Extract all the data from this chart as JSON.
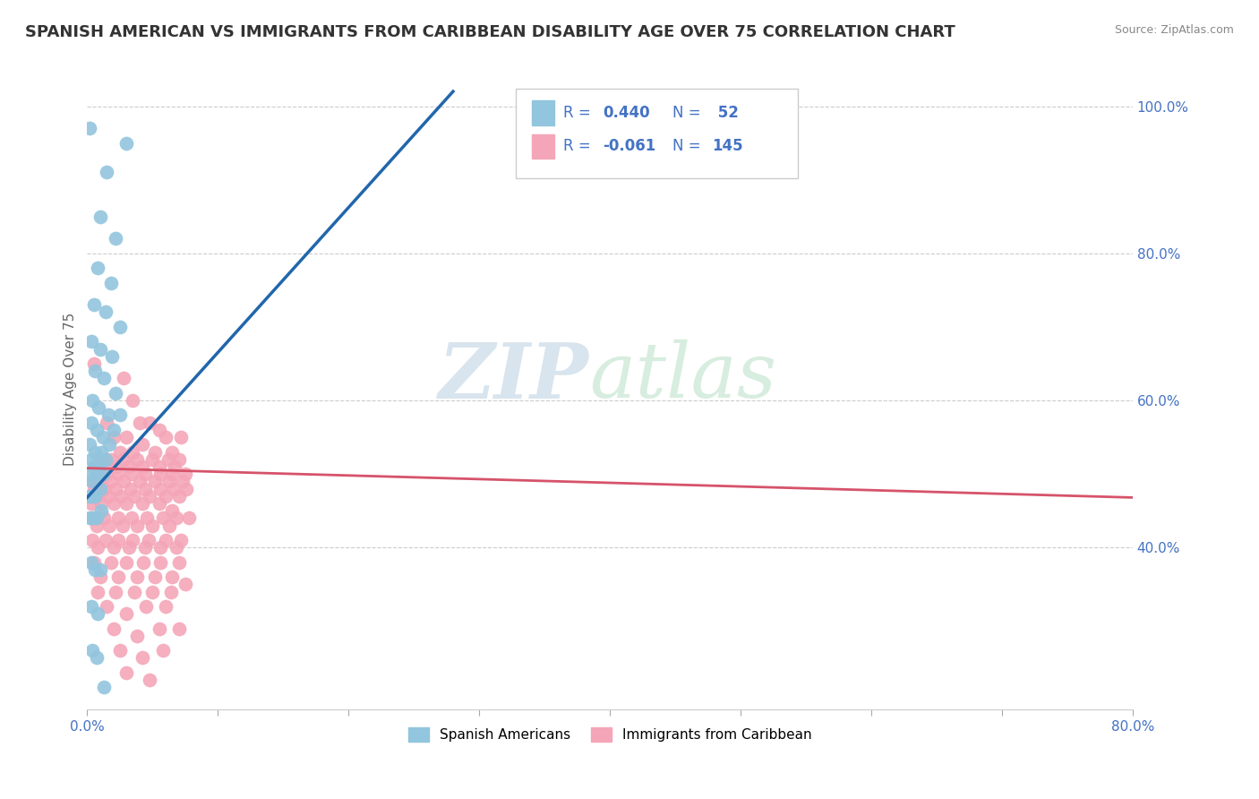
{
  "title": "SPANISH AMERICAN VS IMMIGRANTS FROM CARIBBEAN DISABILITY AGE OVER 75 CORRELATION CHART",
  "source": "Source: ZipAtlas.com",
  "ylabel": "Disability Age Over 75",
  "xlim": [
    0.0,
    0.8
  ],
  "ylim": [
    0.18,
    1.05
  ],
  "xtick_labels": [
    "0.0%",
    "",
    "",
    "",
    "",
    "",
    "",
    "",
    "80.0%"
  ],
  "ytick_labels_right": [
    "100.0%",
    "80.0%",
    "60.0%",
    "40.0%"
  ],
  "ytick_positions_right": [
    1.0,
    0.8,
    0.6,
    0.4
  ],
  "legend_label1": "Spanish Americans",
  "legend_label2": "Immigrants from Caribbean",
  "blue_color": "#92c5de",
  "pink_color": "#f4a6b8",
  "blue_line_color": "#2166ac",
  "pink_line_color": "#d6536a",
  "background_color": "#ffffff",
  "watermark_zip": "ZIP",
  "watermark_atlas": "atlas",
  "title_fontsize": 13,
  "axis_label_fontsize": 11,
  "tick_fontsize": 11,
  "blue_scatter": [
    [
      0.002,
      0.97
    ],
    [
      0.015,
      0.91
    ],
    [
      0.03,
      0.95
    ],
    [
      0.01,
      0.85
    ],
    [
      0.022,
      0.82
    ],
    [
      0.008,
      0.78
    ],
    [
      0.018,
      0.76
    ],
    [
      0.005,
      0.73
    ],
    [
      0.014,
      0.72
    ],
    [
      0.025,
      0.7
    ],
    [
      0.003,
      0.68
    ],
    [
      0.01,
      0.67
    ],
    [
      0.019,
      0.66
    ],
    [
      0.006,
      0.64
    ],
    [
      0.013,
      0.63
    ],
    [
      0.022,
      0.61
    ],
    [
      0.004,
      0.6
    ],
    [
      0.009,
      0.59
    ],
    [
      0.016,
      0.58
    ],
    [
      0.025,
      0.58
    ],
    [
      0.003,
      0.57
    ],
    [
      0.007,
      0.56
    ],
    [
      0.012,
      0.55
    ],
    [
      0.02,
      0.56
    ],
    [
      0.002,
      0.54
    ],
    [
      0.006,
      0.53
    ],
    [
      0.011,
      0.53
    ],
    [
      0.017,
      0.54
    ],
    [
      0.003,
      0.52
    ],
    [
      0.005,
      0.51
    ],
    [
      0.009,
      0.51
    ],
    [
      0.014,
      0.52
    ],
    [
      0.002,
      0.5
    ],
    [
      0.004,
      0.49
    ],
    [
      0.007,
      0.5
    ],
    [
      0.012,
      0.5
    ],
    [
      0.002,
      0.47
    ],
    [
      0.004,
      0.47
    ],
    [
      0.006,
      0.47
    ],
    [
      0.01,
      0.48
    ],
    [
      0.002,
      0.44
    ],
    [
      0.004,
      0.44
    ],
    [
      0.007,
      0.44
    ],
    [
      0.011,
      0.45
    ],
    [
      0.003,
      0.38
    ],
    [
      0.006,
      0.37
    ],
    [
      0.01,
      0.37
    ],
    [
      0.003,
      0.32
    ],
    [
      0.008,
      0.31
    ],
    [
      0.004,
      0.26
    ],
    [
      0.007,
      0.25
    ],
    [
      0.013,
      0.21
    ]
  ],
  "pink_scatter": [
    [
      0.005,
      0.65
    ],
    [
      0.028,
      0.63
    ],
    [
      0.035,
      0.6
    ],
    [
      0.015,
      0.57
    ],
    [
      0.04,
      0.57
    ],
    [
      0.048,
      0.57
    ],
    [
      0.055,
      0.56
    ],
    [
      0.02,
      0.55
    ],
    [
      0.03,
      0.55
    ],
    [
      0.042,
      0.54
    ],
    [
      0.06,
      0.55
    ],
    [
      0.025,
      0.53
    ],
    [
      0.035,
      0.53
    ],
    [
      0.052,
      0.53
    ],
    [
      0.065,
      0.53
    ],
    [
      0.072,
      0.55
    ],
    [
      0.01,
      0.52
    ],
    [
      0.018,
      0.52
    ],
    [
      0.028,
      0.52
    ],
    [
      0.038,
      0.52
    ],
    [
      0.05,
      0.52
    ],
    [
      0.062,
      0.52
    ],
    [
      0.07,
      0.52
    ],
    [
      0.005,
      0.51
    ],
    [
      0.013,
      0.51
    ],
    [
      0.022,
      0.51
    ],
    [
      0.032,
      0.51
    ],
    [
      0.042,
      0.51
    ],
    [
      0.055,
      0.51
    ],
    [
      0.067,
      0.51
    ],
    [
      0.007,
      0.5
    ],
    [
      0.015,
      0.5
    ],
    [
      0.024,
      0.5
    ],
    [
      0.034,
      0.5
    ],
    [
      0.044,
      0.5
    ],
    [
      0.056,
      0.5
    ],
    [
      0.065,
      0.5
    ],
    [
      0.075,
      0.5
    ],
    [
      0.003,
      0.49
    ],
    [
      0.01,
      0.49
    ],
    [
      0.018,
      0.49
    ],
    [
      0.028,
      0.49
    ],
    [
      0.04,
      0.49
    ],
    [
      0.052,
      0.49
    ],
    [
      0.063,
      0.49
    ],
    [
      0.073,
      0.49
    ],
    [
      0.005,
      0.48
    ],
    [
      0.013,
      0.48
    ],
    [
      0.022,
      0.48
    ],
    [
      0.033,
      0.48
    ],
    [
      0.044,
      0.48
    ],
    [
      0.056,
      0.48
    ],
    [
      0.066,
      0.48
    ],
    [
      0.076,
      0.48
    ],
    [
      0.007,
      0.47
    ],
    [
      0.016,
      0.47
    ],
    [
      0.026,
      0.47
    ],
    [
      0.036,
      0.47
    ],
    [
      0.048,
      0.47
    ],
    [
      0.06,
      0.47
    ],
    [
      0.07,
      0.47
    ],
    [
      0.003,
      0.46
    ],
    [
      0.011,
      0.46
    ],
    [
      0.02,
      0.46
    ],
    [
      0.03,
      0.46
    ],
    [
      0.042,
      0.46
    ],
    [
      0.055,
      0.46
    ],
    [
      0.065,
      0.45
    ],
    [
      0.005,
      0.44
    ],
    [
      0.013,
      0.44
    ],
    [
      0.024,
      0.44
    ],
    [
      0.034,
      0.44
    ],
    [
      0.046,
      0.44
    ],
    [
      0.058,
      0.44
    ],
    [
      0.068,
      0.44
    ],
    [
      0.078,
      0.44
    ],
    [
      0.007,
      0.43
    ],
    [
      0.017,
      0.43
    ],
    [
      0.027,
      0.43
    ],
    [
      0.038,
      0.43
    ],
    [
      0.05,
      0.43
    ],
    [
      0.063,
      0.43
    ],
    [
      0.004,
      0.41
    ],
    [
      0.014,
      0.41
    ],
    [
      0.024,
      0.41
    ],
    [
      0.035,
      0.41
    ],
    [
      0.047,
      0.41
    ],
    [
      0.06,
      0.41
    ],
    [
      0.072,
      0.41
    ],
    [
      0.008,
      0.4
    ],
    [
      0.02,
      0.4
    ],
    [
      0.032,
      0.4
    ],
    [
      0.044,
      0.4
    ],
    [
      0.056,
      0.4
    ],
    [
      0.068,
      0.4
    ],
    [
      0.005,
      0.38
    ],
    [
      0.018,
      0.38
    ],
    [
      0.03,
      0.38
    ],
    [
      0.043,
      0.38
    ],
    [
      0.056,
      0.38
    ],
    [
      0.07,
      0.38
    ],
    [
      0.01,
      0.36
    ],
    [
      0.024,
      0.36
    ],
    [
      0.038,
      0.36
    ],
    [
      0.052,
      0.36
    ],
    [
      0.065,
      0.36
    ],
    [
      0.075,
      0.35
    ],
    [
      0.008,
      0.34
    ],
    [
      0.022,
      0.34
    ],
    [
      0.036,
      0.34
    ],
    [
      0.05,
      0.34
    ],
    [
      0.064,
      0.34
    ],
    [
      0.015,
      0.32
    ],
    [
      0.03,
      0.31
    ],
    [
      0.045,
      0.32
    ],
    [
      0.06,
      0.32
    ],
    [
      0.02,
      0.29
    ],
    [
      0.038,
      0.28
    ],
    [
      0.055,
      0.29
    ],
    [
      0.07,
      0.29
    ],
    [
      0.025,
      0.26
    ],
    [
      0.042,
      0.25
    ],
    [
      0.058,
      0.26
    ],
    [
      0.03,
      0.23
    ],
    [
      0.048,
      0.22
    ]
  ],
  "blue_trendline_x": [
    0.0,
    0.28
  ],
  "blue_trendline_y": [
    0.468,
    1.02
  ],
  "pink_trendline_x": [
    0.0,
    0.8
  ],
  "pink_trendline_y": [
    0.508,
    0.468
  ]
}
